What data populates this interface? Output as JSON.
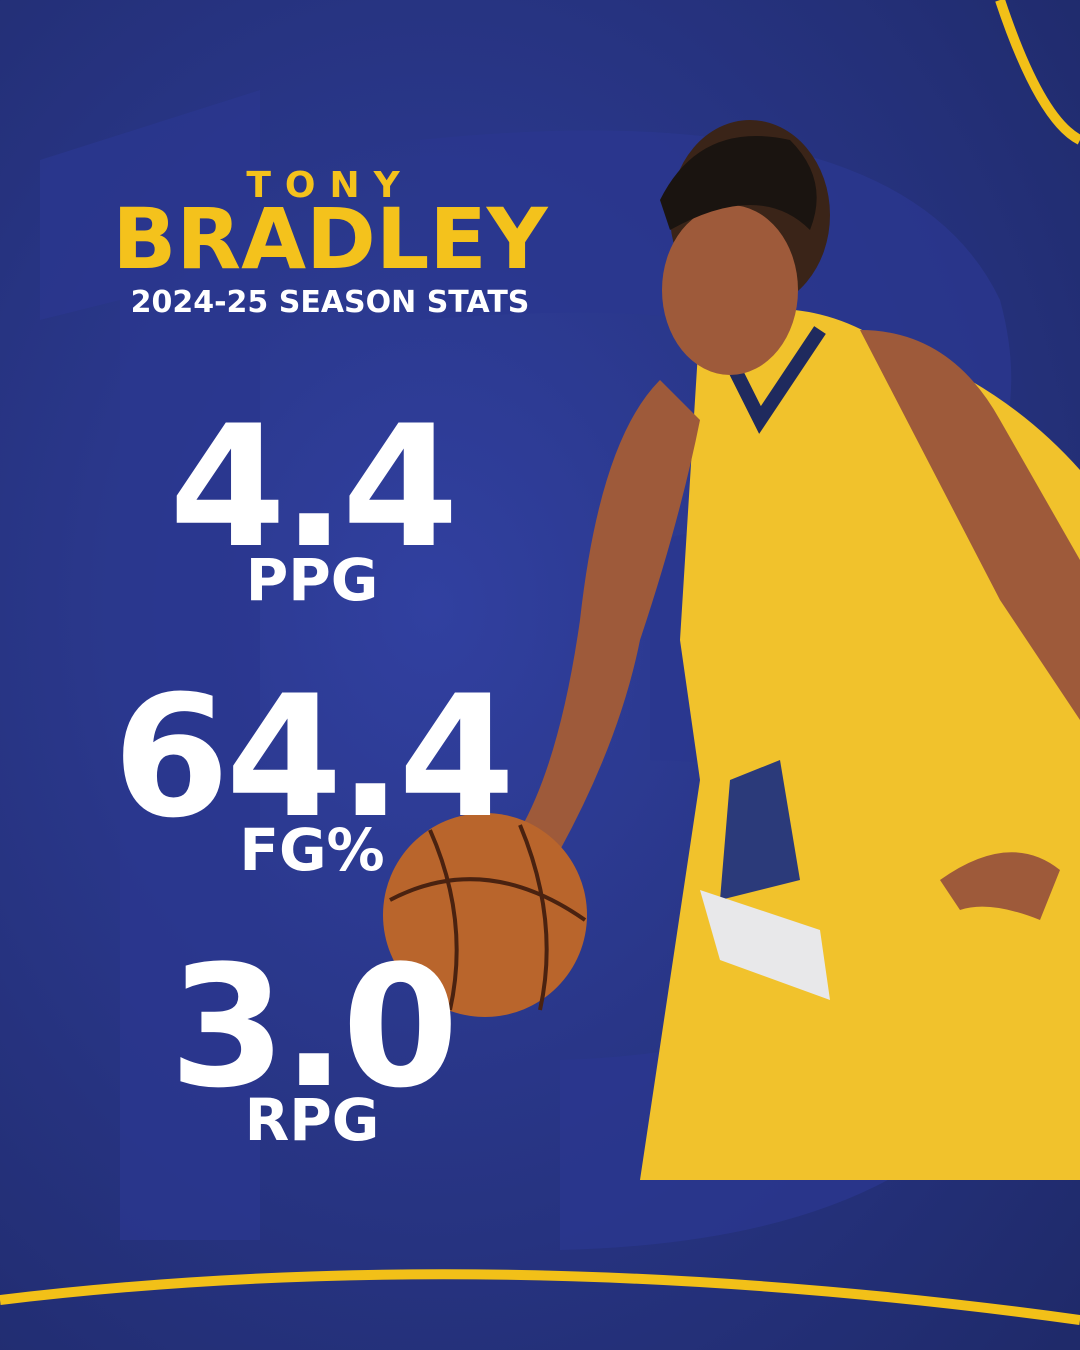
{
  "header": {
    "first_name": "TONY",
    "last_name": "BRADLEY",
    "subtitle": "2024-25 SEASON STATS"
  },
  "stats": [
    {
      "value": "4.4",
      "label": "PPG"
    },
    {
      "value": "64.4",
      "label": "FG%"
    },
    {
      "value": "3.0",
      "label": "RPG"
    }
  ]
}
